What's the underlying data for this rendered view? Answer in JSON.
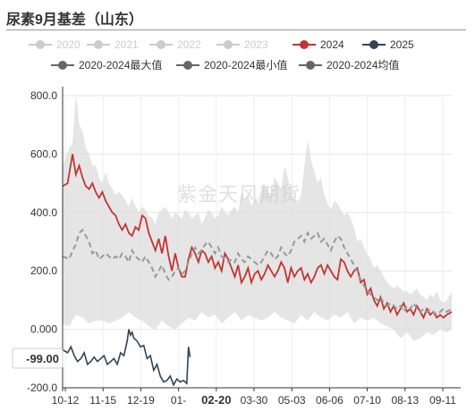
{
  "title": "尿素9月基差（山东）",
  "watermark": "紫金天风期货",
  "legend": [
    {
      "label": "2020",
      "color": "#cccccc",
      "marker": "circle",
      "faded": true
    },
    {
      "label": "2021",
      "color": "#cccccc",
      "marker": "circle",
      "faded": true
    },
    {
      "label": "2022",
      "color": "#cccccc",
      "marker": "circle",
      "faded": true
    },
    {
      "label": "2023",
      "color": "#cccccc",
      "marker": "circle",
      "faded": true
    },
    {
      "label": "2024",
      "color": "#c23531",
      "marker": "circle",
      "faded": false
    },
    {
      "label": "2025",
      "color": "#2f4554",
      "marker": "circle",
      "faded": false
    },
    {
      "label": "2020-2024最大值",
      "color": "#666666",
      "marker": "circle",
      "faded": false
    },
    {
      "label": "2020-2024最小值",
      "color": "#666666",
      "marker": "circle",
      "faded": false
    },
    {
      "label": "2020-2024均值",
      "color": "#666666",
      "marker": "circle",
      "faded": false
    }
  ],
  "chart_data": {
    "type": "line",
    "title": "尿素9月基差（山东）",
    "xlabel": "",
    "ylabel": "",
    "ylim": [
      -200,
      800
    ],
    "yticks": [
      "800.0",
      "600.0",
      "400.0",
      "200.0",
      "0.000",
      "-200.0"
    ],
    "yticks_values": [
      800,
      600,
      400,
      200,
      0,
      -200
    ],
    "xticks": [
      "10-12",
      "11-15",
      "12-19",
      "01-",
      "02-20",
      "03-30",
      "05-03",
      "06-06",
      "07-10",
      "08-13",
      "09-11"
    ],
    "highlight_xtick": "02-20",
    "cursor_value_label": "-99.00",
    "cursor_value": -99,
    "grid": true,
    "legend_position": "top",
    "x_axis_note": "x values are trading-day indices 0..235 from 10-12 to 09-11",
    "series": [
      {
        "name": "2024",
        "color": "#c23531",
        "x": [
          0,
          3,
          6,
          8,
          10,
          12,
          14,
          16,
          18,
          20,
          22,
          24,
          26,
          28,
          30,
          32,
          34,
          36,
          38,
          40,
          42,
          44,
          46,
          48,
          50,
          52,
          54,
          56,
          58,
          60,
          62,
          64,
          66,
          68,
          70,
          72,
          74,
          76,
          78,
          80,
          82,
          84,
          86,
          88,
          90,
          92,
          94,
          96,
          98,
          100,
          102,
          104,
          106,
          108,
          110,
          112,
          114,
          116,
          118,
          120,
          122,
          124,
          126,
          128,
          130,
          132,
          134,
          136,
          138,
          140,
          142,
          144,
          146,
          148,
          150,
          152,
          154,
          156,
          158,
          160,
          162,
          164,
          166,
          168,
          170,
          172,
          174,
          176,
          178,
          180,
          182,
          184,
          186,
          188,
          190,
          192,
          194,
          196,
          198,
          200,
          202,
          204,
          206,
          208,
          210,
          212,
          214,
          216,
          218,
          220,
          222,
          224,
          226,
          228,
          230,
          232,
          235
        ],
        "values": [
          490,
          500,
          600,
          530,
          560,
          520,
          490,
          480,
          500,
          470,
          450,
          470,
          440,
          420,
          400,
          390,
          360,
          340,
          360,
          330,
          320,
          350,
          340,
          390,
          380,
          330,
          300,
          270,
          310,
          260,
          320,
          250,
          200,
          260,
          210,
          180,
          180,
          240,
          280,
          260,
          230,
          270,
          260,
          230,
          250,
          210,
          230,
          200,
          260,
          240,
          210,
          180,
          220,
          160,
          180,
          210,
          160,
          190,
          200,
          170,
          190,
          220,
          200,
          180,
          200,
          230,
          210,
          160,
          210,
          180,
          200,
          210,
          170,
          190,
          160,
          180,
          210,
          220,
          190,
          220,
          200,
          180,
          170,
          240,
          230,
          200,
          180,
          200,
          210,
          160,
          170,
          120,
          140,
          100,
          80,
          110,
          70,
          90,
          60,
          80,
          50,
          70,
          90,
          60,
          70,
          50,
          80,
          60,
          40,
          70,
          50,
          60,
          40,
          50,
          40,
          50,
          60
        ]
      },
      {
        "name": "2025",
        "color": "#2f4554",
        "x": [
          0,
          3,
          5,
          7,
          9,
          11,
          13,
          15,
          17,
          19,
          21,
          23,
          25,
          27,
          29,
          31,
          33,
          35,
          37,
          39,
          40,
          41,
          42,
          43,
          45,
          47,
          49,
          51,
          53,
          55,
          57,
          59,
          61,
          63,
          65,
          67,
          69,
          71,
          73,
          75,
          76,
          77
        ],
        "values": [
          -70,
          -80,
          -60,
          -90,
          -110,
          -100,
          -80,
          -120,
          -110,
          -95,
          -110,
          -100,
          -90,
          -120,
          -110,
          -100,
          -120,
          -80,
          -90,
          -40,
          0,
          -20,
          -10,
          -30,
          -40,
          -60,
          -55,
          -100,
          -90,
          -140,
          -120,
          -160,
          -180,
          -175,
          -160,
          -190,
          -170,
          -180,
          -175,
          -185,
          -60,
          -95
        ]
      },
      {
        "name": "2020-2024最大值",
        "color": "#e0e0e0",
        "x": [
          0,
          4,
          6,
          8,
          10,
          12,
          14,
          16,
          18,
          20,
          22,
          24,
          26,
          28,
          30,
          32,
          34,
          36,
          38,
          40,
          42,
          44,
          46,
          48,
          50,
          52,
          54,
          56,
          58,
          60,
          62,
          64,
          66,
          68,
          70,
          72,
          74,
          76,
          78,
          80,
          82,
          84,
          86,
          88,
          90,
          92,
          94,
          96,
          98,
          100,
          102,
          104,
          106,
          108,
          110,
          112,
          114,
          116,
          118,
          120,
          122,
          124,
          126,
          128,
          130,
          132,
          134,
          136,
          138,
          140,
          142,
          144,
          146,
          148,
          150,
          152,
          154,
          156,
          158,
          160,
          162,
          164,
          166,
          168,
          170,
          172,
          174,
          176,
          178,
          180,
          182,
          184,
          186,
          188,
          190,
          192,
          194,
          196,
          198,
          200,
          202,
          204,
          206,
          208,
          210,
          212,
          214,
          216,
          218,
          220,
          222,
          224,
          226,
          228,
          230,
          232,
          235
        ],
        "values": [
          560,
          620,
          640,
          820,
          700,
          680,
          620,
          600,
          560,
          560,
          520,
          500,
          540,
          500,
          480,
          460,
          470,
          460,
          440,
          420,
          450,
          420,
          400,
          420,
          410,
          390,
          380,
          360,
          400,
          410,
          420,
          400,
          380,
          400,
          390,
          380,
          410,
          400,
          380,
          390,
          400,
          360,
          380,
          410,
          400,
          380,
          390,
          420,
          400,
          390,
          410,
          420,
          400,
          470,
          440,
          460,
          420,
          450,
          430,
          480,
          500,
          470,
          460,
          520,
          500,
          480,
          560,
          520,
          470,
          450,
          430,
          460,
          560,
          650,
          580,
          540,
          500,
          520,
          460,
          430,
          410,
          440,
          430,
          410,
          390,
          400,
          380,
          350,
          300,
          310,
          280,
          260,
          240,
          210,
          220,
          200,
          180,
          160,
          150,
          140,
          150,
          140,
          130,
          130,
          120,
          130,
          140,
          120,
          110,
          100,
          120,
          110,
          130,
          100,
          90,
          100,
          130
        ]
      },
      {
        "name": "2020-2024最小值",
        "color": "#e0e0e0",
        "x": [
          0,
          4,
          8,
          12,
          16,
          20,
          24,
          28,
          32,
          36,
          40,
          44,
          48,
          52,
          56,
          60,
          64,
          68,
          72,
          76,
          80,
          84,
          88,
          92,
          96,
          100,
          104,
          108,
          112,
          116,
          120,
          124,
          128,
          132,
          136,
          140,
          144,
          148,
          152,
          156,
          160,
          164,
          168,
          172,
          176,
          180,
          184,
          188,
          192,
          196,
          200,
          204,
          208,
          212,
          216,
          220,
          224,
          228,
          232,
          235
        ],
        "values": [
          20,
          10,
          50,
          40,
          20,
          30,
          30,
          20,
          30,
          40,
          60,
          40,
          30,
          10,
          0,
          30,
          10,
          0,
          20,
          40,
          30,
          60,
          40,
          50,
          20,
          40,
          60,
          30,
          50,
          40,
          30,
          40,
          60,
          40,
          30,
          20,
          50,
          30,
          60,
          40,
          30,
          50,
          40,
          60,
          20,
          40,
          30,
          40,
          20,
          10,
          0,
          -30,
          -10,
          -40,
          -30,
          -10,
          -20,
          0,
          -10,
          0
        ]
      },
      {
        "name": "2020-2024均值",
        "color": "#999999",
        "x": [
          0,
          4,
          6,
          8,
          10,
          12,
          14,
          16,
          18,
          20,
          22,
          24,
          26,
          28,
          30,
          32,
          34,
          36,
          38,
          40,
          42,
          44,
          46,
          48,
          50,
          52,
          54,
          56,
          58,
          60,
          62,
          64,
          66,
          68,
          70,
          72,
          74,
          76,
          78,
          80,
          82,
          84,
          86,
          88,
          90,
          92,
          94,
          96,
          98,
          100,
          102,
          104,
          106,
          108,
          110,
          112,
          114,
          116,
          118,
          120,
          122,
          124,
          126,
          128,
          130,
          132,
          134,
          136,
          138,
          140,
          142,
          144,
          146,
          148,
          150,
          152,
          154,
          156,
          158,
          160,
          162,
          164,
          166,
          168,
          170,
          172,
          174,
          176,
          178,
          180,
          182,
          184,
          186,
          188,
          190,
          192,
          194,
          196,
          198,
          200,
          202,
          204,
          206,
          208,
          210,
          212,
          214,
          216,
          218,
          220,
          222,
          224,
          226,
          228,
          230,
          232,
          235
        ],
        "values": [
          250,
          240,
          270,
          290,
          330,
          340,
          320,
          300,
          260,
          270,
          240,
          250,
          260,
          250,
          240,
          250,
          240,
          260,
          250,
          230,
          270,
          250,
          240,
          230,
          250,
          230,
          210,
          180,
          200,
          220,
          190,
          170,
          180,
          200,
          210,
          190,
          200,
          230,
          260,
          280,
          260,
          270,
          290,
          300,
          280,
          260,
          280,
          250,
          240,
          230,
          240,
          230,
          260,
          240,
          230,
          250,
          240,
          230,
          220,
          230,
          250,
          270,
          260,
          240,
          250,
          280,
          260,
          250,
          270,
          300,
          310,
          320,
          300,
          330,
          310,
          320,
          330,
          300,
          310,
          290,
          270,
          300,
          320,
          310,
          280,
          260,
          240,
          220,
          200,
          170,
          150,
          130,
          120,
          110,
          100,
          110,
          90,
          80,
          90,
          80,
          70,
          80,
          60,
          80,
          70,
          90,
          70,
          60,
          70,
          60,
          70,
          60,
          50,
          60,
          70,
          60,
          70
        ]
      }
    ]
  }
}
